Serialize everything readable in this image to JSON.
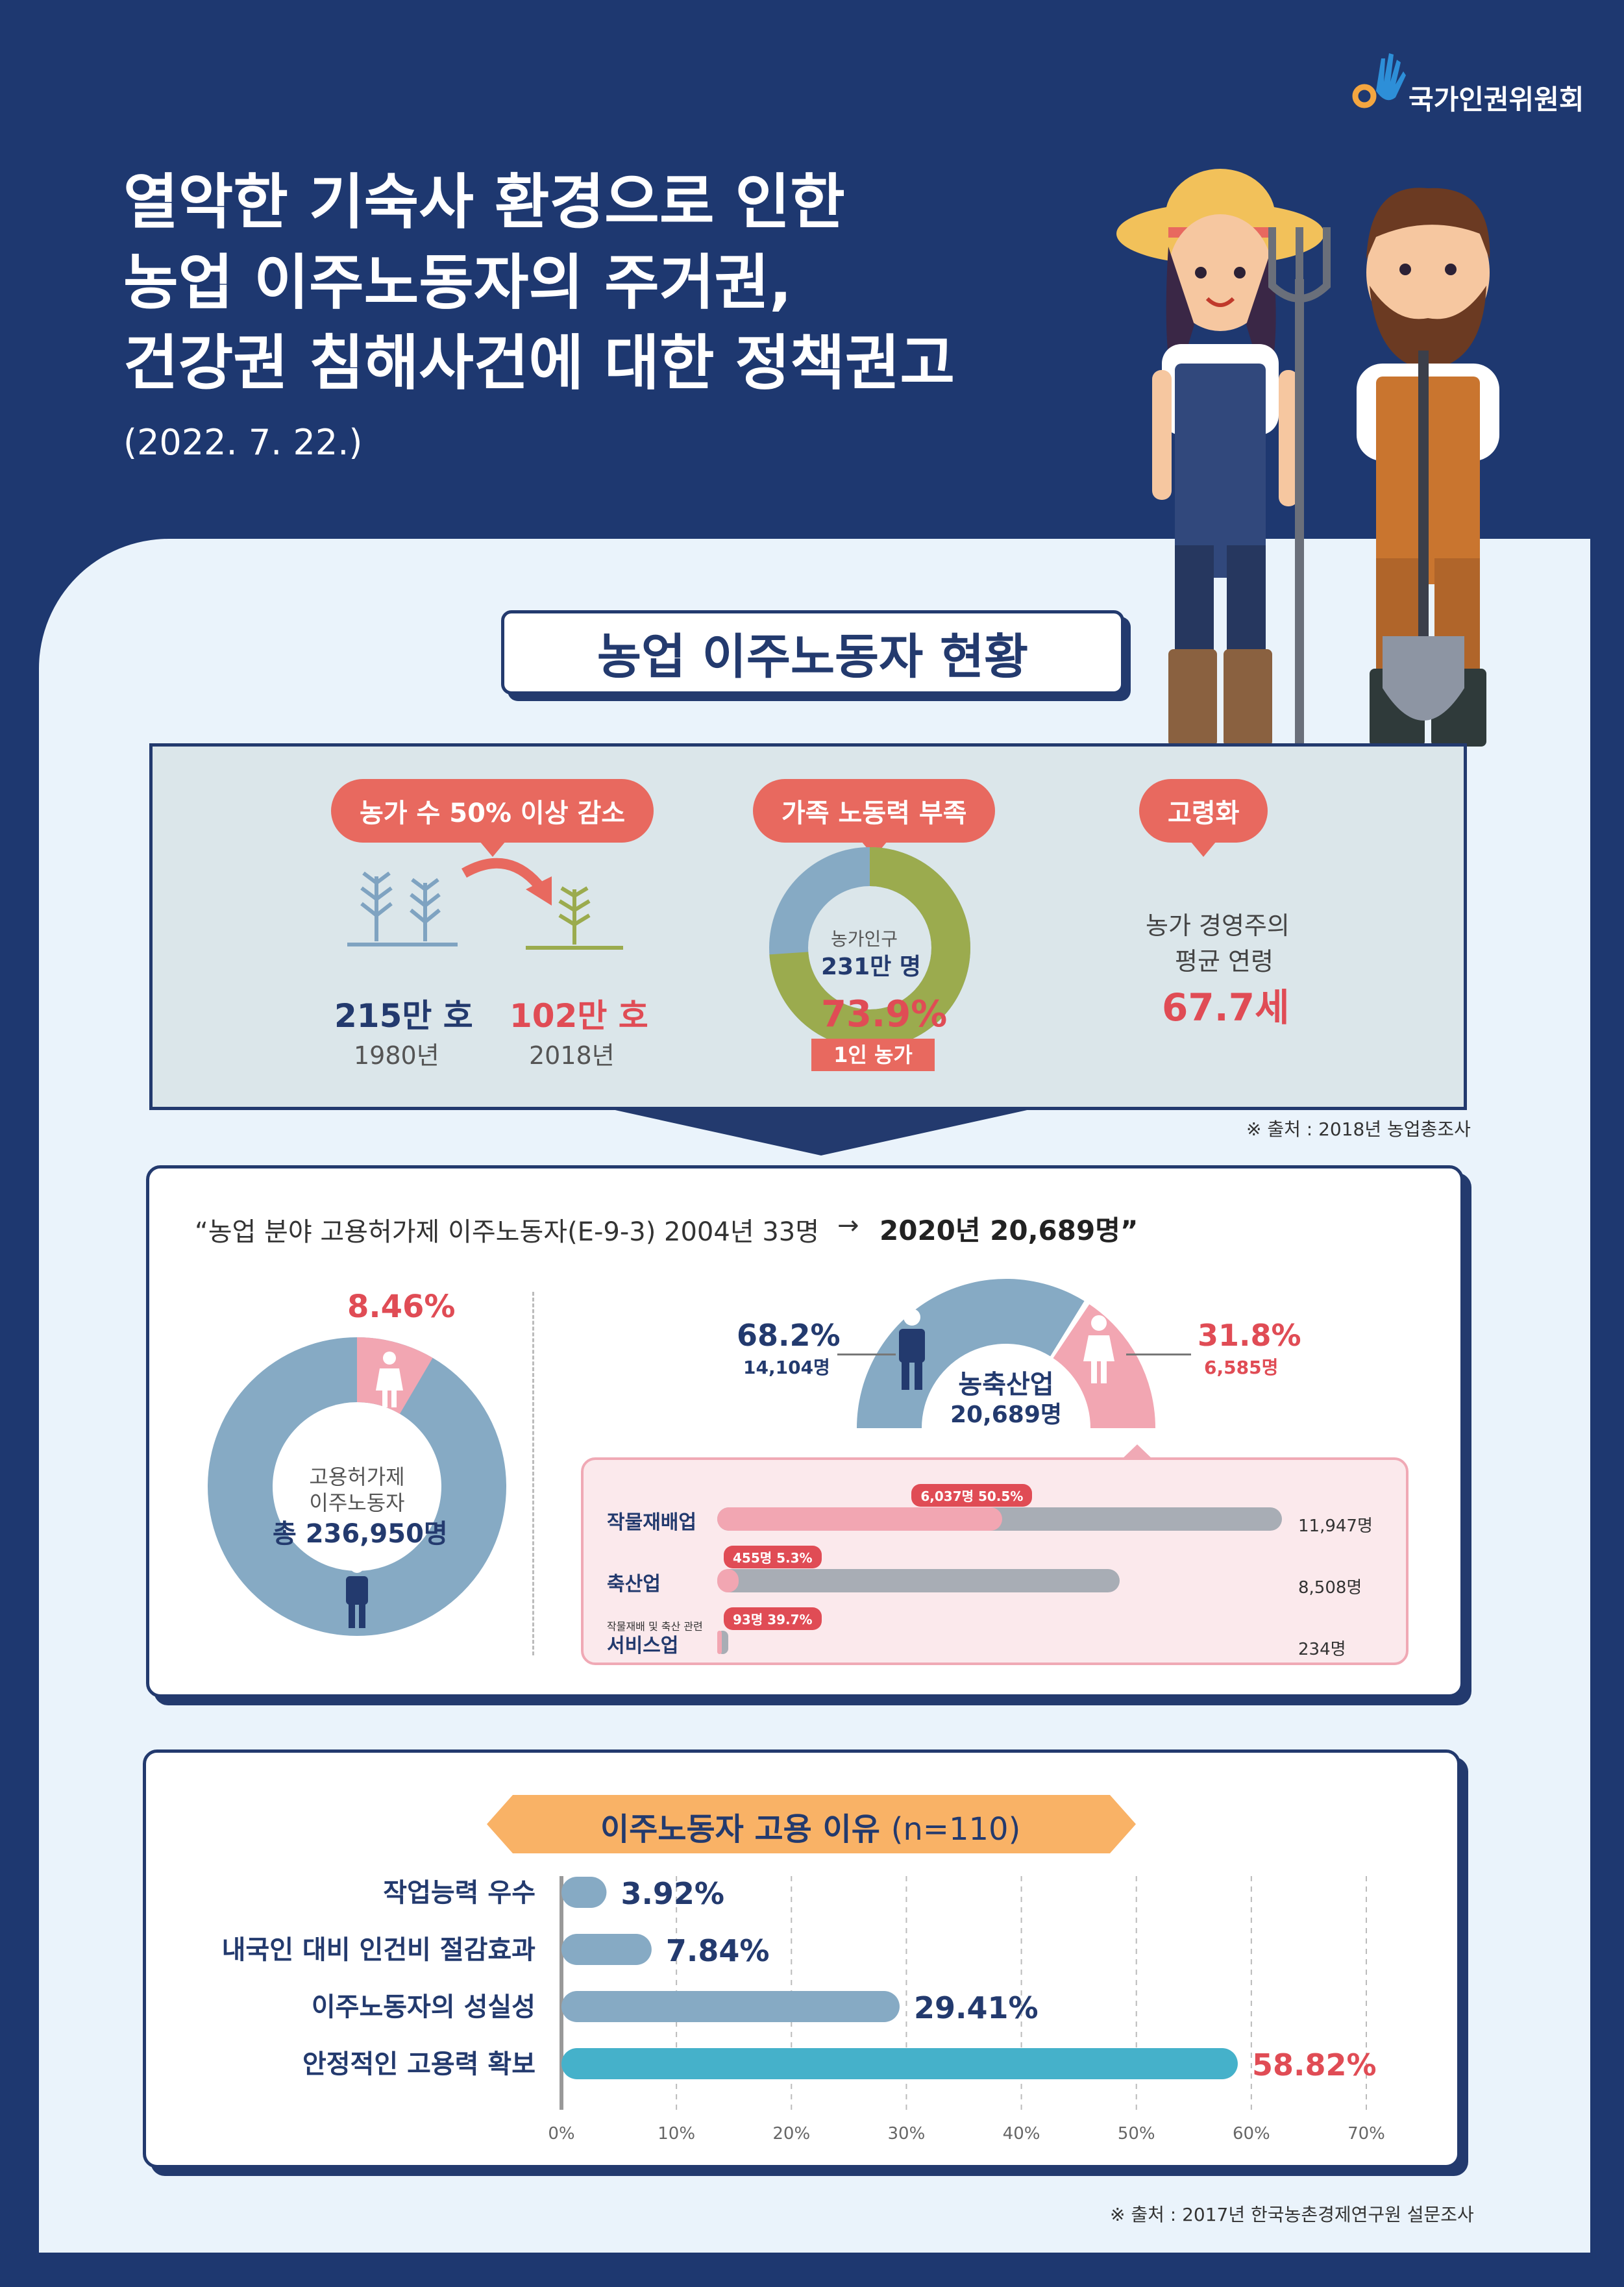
{
  "org": {
    "name": "국가인권위원회",
    "logo_icon": "hand-logo-icon"
  },
  "header": {
    "title_lines": [
      "열악한 기숙사 환경으로 인한",
      "농업 이주노동자의 주거권,",
      "건강권 침해사건에 대한 정책권고"
    ],
    "date": "(2022. 7. 22.)"
  },
  "section": {
    "title": "농업 이주노동자 현황"
  },
  "status": {
    "decline": {
      "label": "농가 수 50% 이상 감소",
      "before_value": "215만 호",
      "before_year": "1980년",
      "after_value": "102만 호",
      "after_year": "2018년"
    },
    "family": {
      "label": "가족 노동력 부족",
      "center_label": "농가인구",
      "center_value": "231만 명",
      "percent": "73.9%",
      "percent_value": 73.9,
      "tag": "1인 농가"
    },
    "aging": {
      "label": "고령화",
      "desc_line1": "농가 경영주의",
      "desc_line2": "평균 연령",
      "value": "67.7세"
    },
    "source": "※ 출처 : 2018년 농업총조사"
  },
  "workers": {
    "quote_prefix": "“농업 분야 고용허가제 이주노동자(E-9-3) 2004년 33명",
    "arrow": "→",
    "quote_bold": "2020년 20,689명”",
    "total_donut": {
      "female_percent": "8.46%",
      "female_value": 8.46,
      "line1": "고용허가제",
      "line2": "이주노동자",
      "total": "총 236,950명"
    },
    "gauge": {
      "male_percent": "68.2%",
      "male_count": "14,104명",
      "male_value": 68.2,
      "female_percent": "31.8%",
      "female_count": "6,585명",
      "female_value": 31.8,
      "center_line1": "농축산업",
      "center_line2": "20,689명"
    },
    "bars": [
      {
        "label": "작물재배업",
        "small_label": "",
        "female_count": "6,037명",
        "female_percent": "50.5%",
        "female_value": 50.5,
        "total_label": "11,947명",
        "total": 11947
      },
      {
        "label": "축산업",
        "small_label": "",
        "female_count": "455명",
        "female_percent": "5.3%",
        "female_value": 5.3,
        "total_label": "8,508명",
        "total": 8508
      },
      {
        "label": "서비스업",
        "small_label": "작물재배 및 축산 관련",
        "female_count": "93명",
        "female_percent": "39.7%",
        "female_value": 39.7,
        "total_label": "234명",
        "total": 234
      }
    ]
  },
  "reasons": {
    "title": "이주노동자 고용 이유",
    "n": "(n=110)",
    "source": "※ 출처 : 2017년 한국농촌경제연구원 설문조사",
    "chart_data": {
      "type": "bar",
      "orientation": "horizontal",
      "title": "이주노동자 고용 이유 (n=110)",
      "categories": [
        "작업능력 우수",
        "내국인 대비 인건비 절감효과",
        "이주노동자의 성실성",
        "안정적인 고용력 확보"
      ],
      "values": [
        3.92,
        7.84,
        29.41,
        58.82
      ],
      "value_labels": [
        "3.92%",
        "7.84%",
        "29.41%",
        "58.82%"
      ],
      "xlim": [
        0,
        70
      ],
      "xticks": [
        "0%",
        "10%",
        "20%",
        "30%",
        "40%",
        "50%",
        "60%",
        "70%"
      ],
      "grid": true,
      "colors": [
        "#86aac4",
        "#86aac4",
        "#86aac4",
        "#45b1ca"
      ]
    }
  }
}
